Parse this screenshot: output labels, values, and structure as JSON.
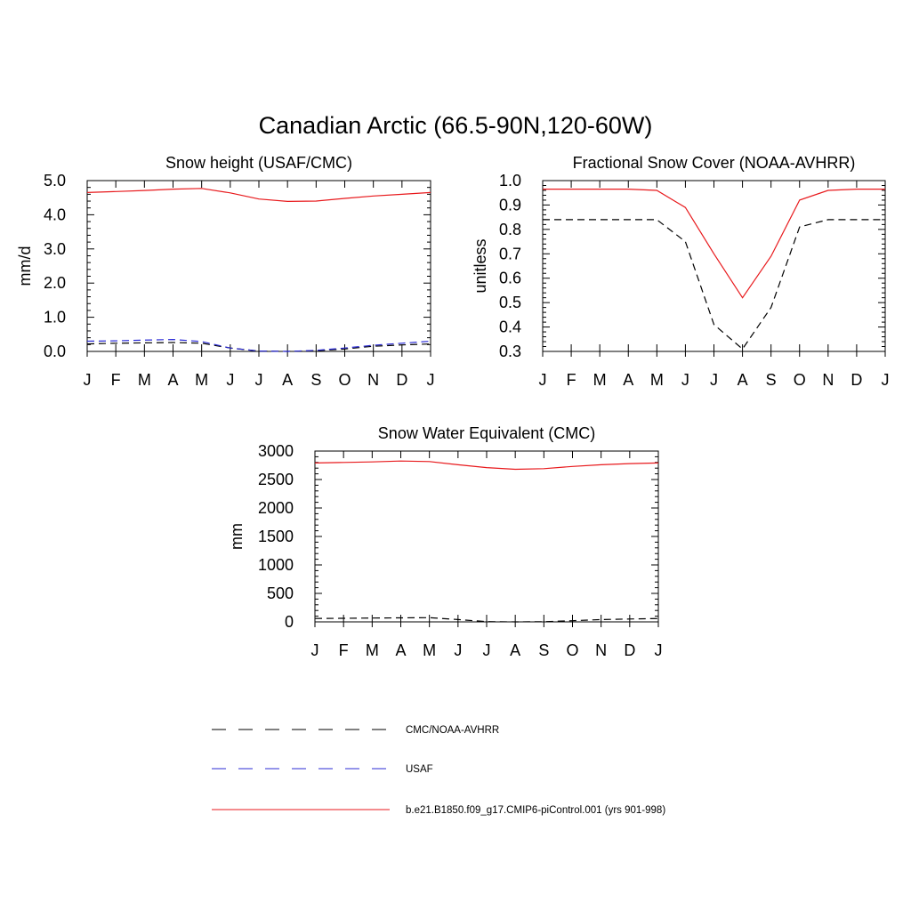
{
  "figure": {
    "title": "Canadian Arctic (66.5-90N,120-60W)"
  },
  "months": [
    "J",
    "F",
    "M",
    "A",
    "M",
    "J",
    "J",
    "A",
    "S",
    "O",
    "N",
    "D",
    "J"
  ],
  "colors": {
    "obs": "#000000",
    "usaf": "#2b2bd6",
    "model": "#e8191c"
  },
  "chart_data": [
    {
      "type": "line",
      "title": "Snow height (USAF/CMC)",
      "ylabel": "mm/d",
      "xlabel": "",
      "ylim": [
        0,
        5
      ],
      "yticks": [
        "0.0",
        "1.0",
        "2.0",
        "3.0",
        "4.0",
        "5.0"
      ],
      "series": [
        {
          "name": "CMC/NOAA-AVHRR",
          "style": "dashed",
          "color": "#000000",
          "values": [
            0.22,
            0.24,
            0.25,
            0.26,
            0.24,
            0.1,
            0.01,
            0.0,
            0.02,
            0.07,
            0.15,
            0.19,
            0.22
          ]
        },
        {
          "name": "USAF",
          "style": "dashed",
          "color": "#2b2bd6",
          "values": [
            0.3,
            0.31,
            0.33,
            0.35,
            0.29,
            0.1,
            0.01,
            0.0,
            0.03,
            0.1,
            0.18,
            0.24,
            0.3
          ]
        },
        {
          "name": "b.e21.B1850.f09_g17.CMIP6-piControl.001 (yrs 901-998)",
          "style": "solid",
          "color": "#e8191c",
          "values": [
            4.65,
            4.68,
            4.71,
            4.75,
            4.77,
            4.64,
            4.46,
            4.39,
            4.4,
            4.48,
            4.55,
            4.6,
            4.65
          ]
        }
      ]
    },
    {
      "type": "line",
      "title": "Fractional Snow Cover (NOAA-AVHRR)",
      "ylabel": "unitless",
      "xlabel": "",
      "ylim": [
        0.3,
        1.0
      ],
      "yticks": [
        "0.3",
        "0.4",
        "0.5",
        "0.6",
        "0.7",
        "0.8",
        "0.9",
        "1.0"
      ],
      "series": [
        {
          "name": "CMC/NOAA-AVHRR",
          "style": "dashed",
          "color": "#000000",
          "values": [
            0.84,
            0.84,
            0.84,
            0.84,
            0.84,
            0.75,
            0.41,
            0.31,
            0.48,
            0.81,
            0.84,
            0.84,
            0.84
          ]
        },
        {
          "name": "b.e21.B1850.f09_g17.CMIP6-piControl.001 (yrs 901-998)",
          "style": "solid",
          "color": "#e8191c",
          "values": [
            0.965,
            0.965,
            0.965,
            0.965,
            0.96,
            0.89,
            0.7,
            0.52,
            0.69,
            0.92,
            0.96,
            0.965,
            0.965
          ]
        }
      ]
    },
    {
      "type": "line",
      "title": "Snow Water Equivalent (CMC)",
      "ylabel": "mm",
      "xlabel": "",
      "ylim": [
        0,
        3000
      ],
      "yticks": [
        "0",
        "500",
        "1000",
        "1500",
        "2000",
        "2500",
        "3000"
      ],
      "series": [
        {
          "name": "CMC/NOAA-AVHRR",
          "style": "dashed",
          "color": "#000000",
          "values": [
            60,
            63,
            67,
            71,
            73,
            40,
            5,
            0,
            3,
            20,
            40,
            50,
            60
          ]
        },
        {
          "name": "b.e21.B1850.f09_g17.CMIP6-piControl.001 (yrs 901-998)",
          "style": "solid",
          "color": "#e8191c",
          "values": [
            2790,
            2800,
            2810,
            2825,
            2815,
            2760,
            2710,
            2680,
            2690,
            2730,
            2760,
            2780,
            2790
          ]
        }
      ]
    }
  ],
  "legend": {
    "placement": "bottom",
    "items": [
      {
        "label": "CMC/NOAA-AVHRR",
        "style": "dashed",
        "color": "#000000"
      },
      {
        "label": "USAF",
        "style": "dashed",
        "color": "#2b2bd6"
      },
      {
        "label": "b.e21.B1850.f09_g17.CMIP6-piControl.001 (yrs 901-998)",
        "style": "solid",
        "color": "#e8191c"
      }
    ]
  }
}
